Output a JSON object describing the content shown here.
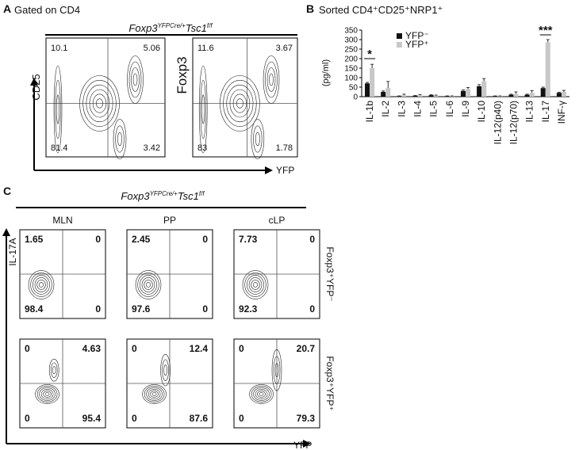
{
  "panel_a": {
    "label": "A",
    "gate": "Gated on CD4",
    "genotype": {
      "gene1": "Foxp3",
      "sup1": "YFPCre/+",
      "gene2": "Tsc1",
      "sup2": "f/f"
    },
    "x_axis": "YFP",
    "plots": [
      {
        "y_axis": "CD25",
        "quadrants": [
          10.1,
          5.06,
          81.4,
          3.42
        ]
      },
      {
        "y_axis": "Foxp3",
        "quadrants": [
          11.6,
          3.67,
          83,
          1.78
        ]
      }
    ]
  },
  "chart_data": {
    "type": "bar",
    "label": "B",
    "title": "Sorted CD4⁺CD25⁺NRP1⁺",
    "y_label": "(pg/ml)",
    "categories": [
      "IL-1b",
      "IL-2",
      "IL-3",
      "IL-4",
      "IL-5",
      "IL-6",
      "IL-9",
      "IL-10",
      "IL-12(p40)",
      "IL-12(p70)",
      "IL-13",
      "IL-17",
      "INF-γ"
    ],
    "series": [
      {
        "name": "YFP⁻",
        "color": "#111111",
        "values": [
          70,
          25,
          3,
          5,
          8,
          3,
          30,
          55,
          3,
          10,
          10,
          45,
          20
        ],
        "errors": [
          5,
          5,
          1,
          1,
          2,
          1,
          5,
          8,
          1,
          3,
          3,
          5,
          3
        ]
      },
      {
        "name": "YFP⁺",
        "color": "#c8c8c8",
        "values": [
          150,
          45,
          8,
          8,
          5,
          3,
          40,
          80,
          3,
          15,
          20,
          285,
          25
        ],
        "errors": [
          20,
          35,
          5,
          3,
          3,
          1,
          8,
          15,
          1,
          10,
          12,
          15,
          8
        ]
      }
    ],
    "ylim": [
      0,
      350
    ],
    "yticks": [
      0,
      50,
      100,
      150,
      200,
      250,
      300,
      350
    ],
    "annotations": [
      "*",
      "***"
    ]
  },
  "panel_c": {
    "label": "C",
    "genotype": {
      "gene1": "Foxp3",
      "sup1": "YFPCre/+",
      "gene2": "Tsc1",
      "sup2": "f/f"
    },
    "columns": [
      "MLN",
      "PP",
      "cLP"
    ],
    "rows": [
      "Foxp3⁺YFP⁻",
      "Foxp3⁺YFP⁺"
    ],
    "y_axis": "IL-17A",
    "x_axis": "YFP",
    "quadrants": [
      [
        [
          1.65,
          0,
          98.4,
          0
        ],
        [
          2.45,
          0,
          97.6,
          0
        ],
        [
          7.73,
          0,
          92.3,
          0
        ]
      ],
      [
        [
          0,
          4.63,
          0,
          95.4
        ],
        [
          0,
          12.4,
          0,
          87.6
        ],
        [
          0,
          20.7,
          0,
          79.3
        ]
      ]
    ]
  }
}
